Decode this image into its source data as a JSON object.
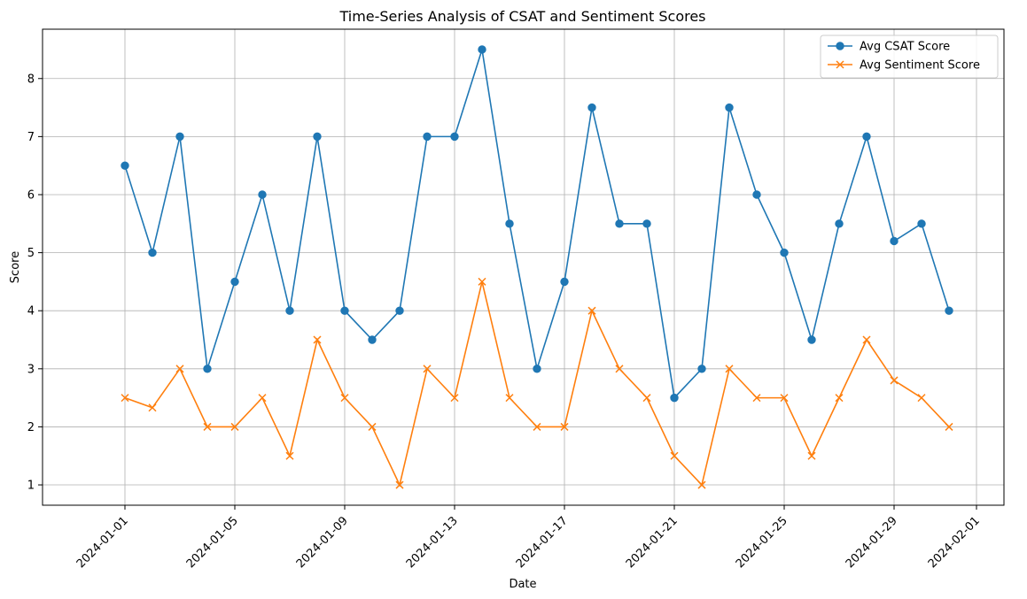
{
  "chart_data": {
    "type": "line",
    "title": "Time-Series Analysis of CSAT and Sentiment Scores",
    "xlabel": "Date",
    "ylabel": "Score",
    "grid": true,
    "legend_position": "top-right",
    "xlim": [
      "2023-12-29",
      "2024-02-02"
    ],
    "ylim": [
      0.65,
      8.85
    ],
    "x_ticks": [
      "2024-01-01",
      "2024-01-05",
      "2024-01-09",
      "2024-01-13",
      "2024-01-17",
      "2024-01-21",
      "2024-01-25",
      "2024-01-29",
      "2024-02-01"
    ],
    "y_ticks": [
      1,
      2,
      3,
      4,
      5,
      6,
      7,
      8
    ],
    "x": [
      "2024-01-01",
      "2024-01-02",
      "2024-01-03",
      "2024-01-04",
      "2024-01-05",
      "2024-01-06",
      "2024-01-07",
      "2024-01-08",
      "2024-01-09",
      "2024-01-10",
      "2024-01-11",
      "2024-01-12",
      "2024-01-13",
      "2024-01-14",
      "2024-01-15",
      "2024-01-16",
      "2024-01-17",
      "2024-01-18",
      "2024-01-19",
      "2024-01-20",
      "2024-01-21",
      "2024-01-22",
      "2024-01-23",
      "2024-01-24",
      "2024-01-25",
      "2024-01-26",
      "2024-01-27",
      "2024-01-28",
      "2024-01-29",
      "2024-01-30",
      "2024-01-31"
    ],
    "series": [
      {
        "name": "Avg CSAT Score",
        "color": "#1f77b4",
        "marker": "circle",
        "values": [
          6.5,
          5.0,
          7.0,
          3.0,
          4.5,
          6.0,
          4.0,
          7.0,
          4.0,
          3.5,
          4.0,
          7.0,
          7.0,
          8.5,
          5.5,
          3.0,
          4.5,
          7.5,
          5.5,
          5.5,
          2.5,
          3.0,
          7.5,
          6.0,
          5.0,
          3.5,
          5.5,
          7.0,
          5.2,
          5.5,
          4.0
        ]
      },
      {
        "name": "Avg Sentiment Score",
        "color": "#ff7f0e",
        "marker": "x",
        "values": [
          2.5,
          2.33,
          3.0,
          2.0,
          2.0,
          2.5,
          1.5,
          3.5,
          2.5,
          2.0,
          1.0,
          3.0,
          2.5,
          4.5,
          2.5,
          2.0,
          2.0,
          4.0,
          3.0,
          2.5,
          1.5,
          1.0,
          3.0,
          2.5,
          2.5,
          1.5,
          2.5,
          3.5,
          2.8,
          2.5,
          2.0
        ]
      }
    ]
  }
}
